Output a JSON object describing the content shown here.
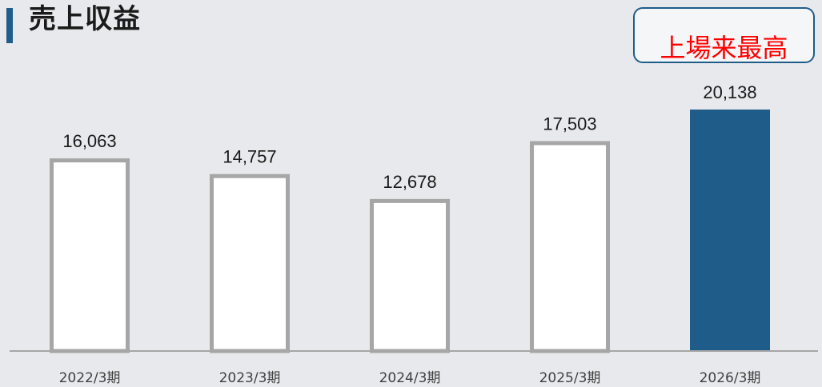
{
  "header": {
    "title": "売上収益",
    "badge": "上場来最高"
  },
  "colors": {
    "background": "#e8e9ec",
    "accent": "#1f5c8a",
    "bar_outline": "#a6a6a6",
    "bar_fill": "#ffffff",
    "highlight_fill": "#1f5c8a",
    "badge_text": "#ff0000"
  },
  "chart_data": {
    "type": "bar",
    "title": "売上収益",
    "categories": [
      "2022/3期",
      "2023/3期",
      "2024/3期",
      "2025/3期",
      "2026/3期"
    ],
    "values": [
      16063,
      14757,
      12678,
      17503,
      20138
    ],
    "value_labels": [
      "16,063",
      "14,757",
      "12,678",
      "17,503",
      "20,138"
    ],
    "highlight_index": 4,
    "annotation": "上場来最高",
    "ylim": [
      0,
      20138
    ],
    "grid": false,
    "legend": "none"
  }
}
